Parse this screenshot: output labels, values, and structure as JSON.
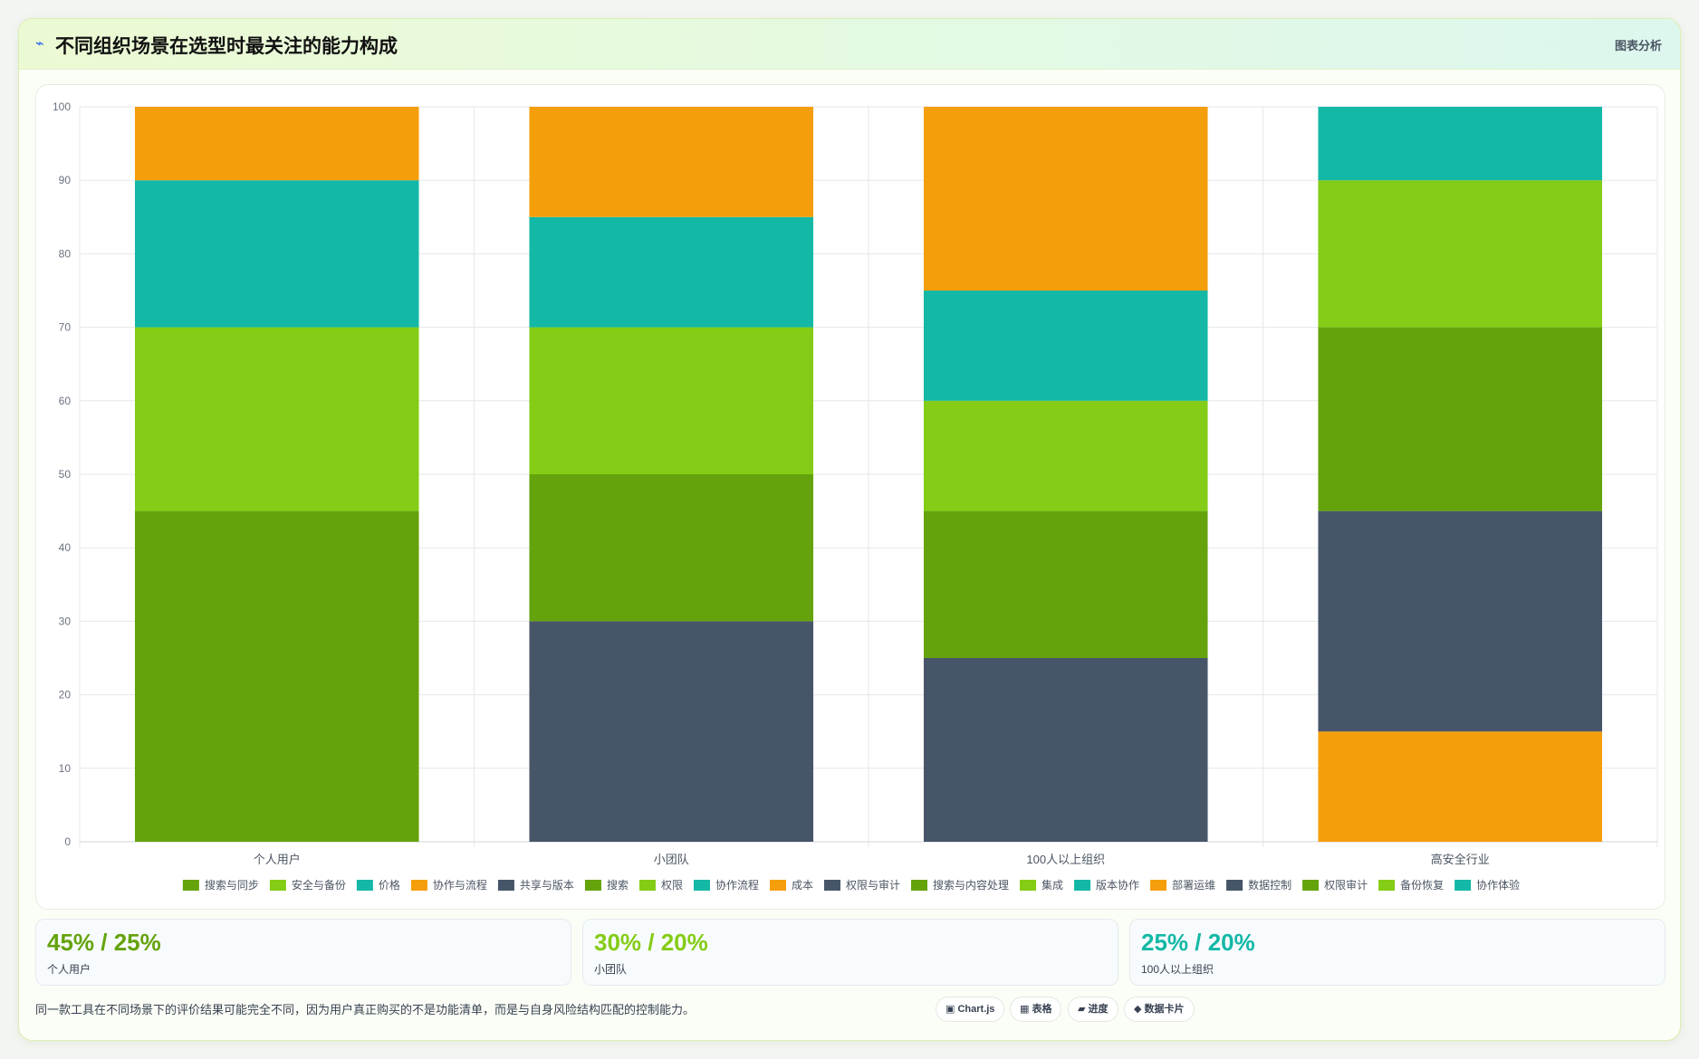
{
  "header": {
    "icon": "trend-icon",
    "title": "不同组织场景在选型时最关注的能力构成",
    "tag": "图表分析"
  },
  "chart_data": {
    "type": "bar",
    "stacked": true,
    "title": "",
    "xlabel": "",
    "ylabel": "",
    "ylim": [
      0,
      100
    ],
    "yticks": [
      0,
      10,
      20,
      30,
      40,
      50,
      60,
      70,
      80,
      90,
      100
    ],
    "grid": true,
    "legend_position": "bottom",
    "categories": [
      "个人用户",
      "小团队",
      "100人以上组织",
      "高安全行业"
    ],
    "series": [
      {
        "name": "搜索与同步",
        "color": "#65a30d",
        "values": [
          45,
          0,
          0,
          0
        ]
      },
      {
        "name": "安全与备份",
        "color": "#84cc16",
        "values": [
          25,
          0,
          0,
          0
        ]
      },
      {
        "name": "价格",
        "color": "#14b8a6",
        "values": [
          20,
          0,
          0,
          0
        ]
      },
      {
        "name": "协作与流程",
        "color": "#f59e0b",
        "values": [
          10,
          0,
          0,
          0
        ]
      },
      {
        "name": "共享与版本",
        "color": "#475569",
        "values": [
          0,
          30,
          0,
          0
        ]
      },
      {
        "name": "搜索",
        "color": "#65a30d",
        "values": [
          0,
          20,
          0,
          0
        ]
      },
      {
        "name": "权限",
        "color": "#84cc16",
        "values": [
          0,
          20,
          0,
          0
        ]
      },
      {
        "name": "协作流程",
        "color": "#14b8a6",
        "values": [
          0,
          15,
          0,
          0
        ]
      },
      {
        "name": "成本",
        "color": "#f59e0b",
        "values": [
          0,
          15,
          0,
          0
        ]
      },
      {
        "name": "权限与审计",
        "color": "#475569",
        "values": [
          0,
          0,
          25,
          0
        ]
      },
      {
        "name": "搜索与内容处理",
        "color": "#65a30d",
        "values": [
          0,
          0,
          20,
          0
        ]
      },
      {
        "name": "集成",
        "color": "#84cc16",
        "values": [
          0,
          0,
          15,
          0
        ]
      },
      {
        "name": "版本协作",
        "color": "#14b8a6",
        "values": [
          0,
          0,
          15,
          0
        ]
      },
      {
        "name": "部署运维",
        "color": "#f59e0b",
        "values": [
          0,
          0,
          25,
          15
        ]
      },
      {
        "name": "数据控制",
        "color": "#475569",
        "values": [
          0,
          0,
          0,
          30
        ]
      },
      {
        "name": "权限审计",
        "color": "#65a30d",
        "values": [
          0,
          0,
          0,
          25
        ]
      },
      {
        "name": "备份恢复",
        "color": "#84cc16",
        "values": [
          0,
          0,
          0,
          20
        ]
      },
      {
        "name": "协作体验",
        "color": "#14b8a6",
        "values": [
          0,
          0,
          0,
          10
        ]
      }
    ]
  },
  "stats": [
    {
      "value": "45% / 25%",
      "label": "个人用户",
      "color": "#65a30d"
    },
    {
      "value": "30% / 20%",
      "label": "小团队",
      "color": "#84cc16"
    },
    {
      "value": "25% / 20%",
      "label": "100人以上组织",
      "color": "#14b8a6"
    }
  ],
  "footer": {
    "note": "同一款工具在不同场景下的评价结果可能完全不同，因为用户真正购买的不是功能清单，而是与自身风险结构匹配的控制能力。",
    "chips": [
      {
        "icon": "▣",
        "label": "Chart.js"
      },
      {
        "icon": "▦",
        "label": "表格"
      },
      {
        "icon": "▰",
        "label": "进度"
      },
      {
        "icon": "◆",
        "label": "数据卡片"
      }
    ]
  }
}
